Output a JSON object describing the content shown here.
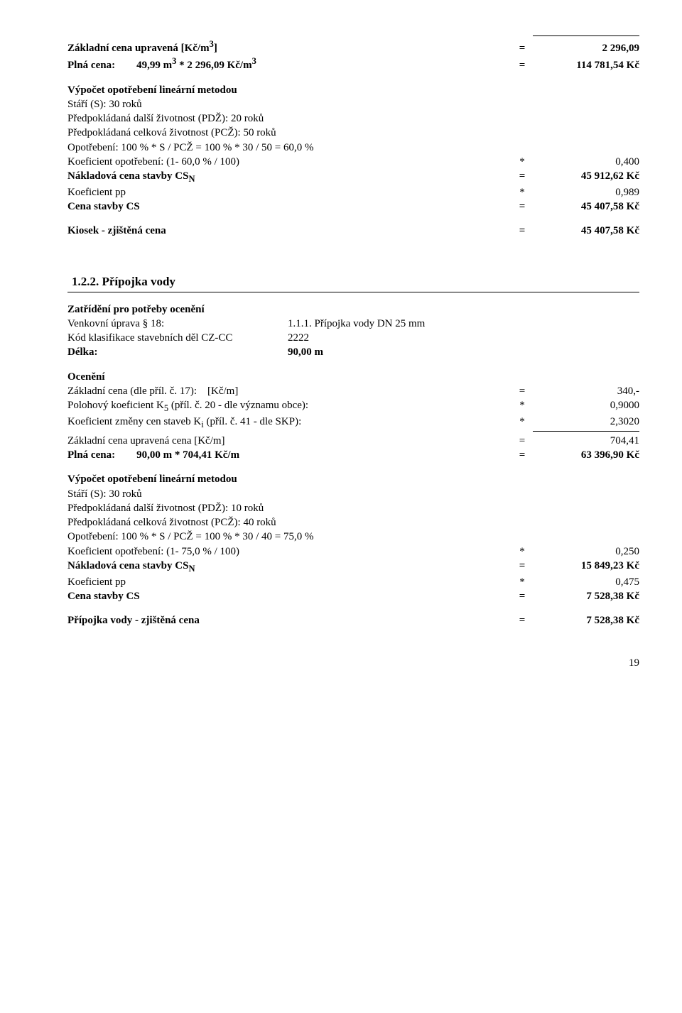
{
  "block1": {
    "top_line": true,
    "rows": [
      {
        "left": "Základní cena upravená [Kč/m<sup>3</sup>]",
        "op": "=",
        "val": "2 296,09",
        "bold": true
      },
      {
        "left": "Plná cena:&nbsp;&nbsp;&nbsp;&nbsp;&nbsp;&nbsp;&nbsp;&nbsp;49,99 m<sup>3</sup> * 2 296,09 Kč/m<sup>3</sup>",
        "op": "=",
        "val": "114 781,54 Kč",
        "bold": true
      }
    ]
  },
  "calc1": {
    "heading": "Výpočet opotřebení lineární metodou",
    "lines": [
      "Stáří (S): 30 roků",
      "Předpokládaná další životnost (PDŽ): 20 roků",
      "Předpokládaná celková životnost (PCŽ): 50 roků",
      "Opotřebení: 100 % * S / PCŽ = 100 % * 30 / 50 = 60,0 %"
    ],
    "rows": [
      {
        "left": "Koeficient opotřebení: (1- 60,0 % / 100)",
        "op": "*",
        "val": "0,400"
      },
      {
        "left": "Nákladová cena stavby CS<sub>N</sub>",
        "op": "=",
        "val": "45 912,62 Kč",
        "bold": true
      },
      {
        "left": "Koeficient pp",
        "op": "*",
        "val": "0,989"
      },
      {
        "left": "Cena stavby CS",
        "op": "=",
        "val": "45 407,58 Kč",
        "bold": true
      }
    ]
  },
  "result1": {
    "left": "Kiosek - zjištěná cena",
    "op": "=",
    "val": "45 407,58 Kč",
    "bold": true
  },
  "section2": {
    "number": "1.2.2. Přípojka vody",
    "zatr_heading": "Zatřídění pro potřeby ocenění",
    "pairs": [
      {
        "l": "Venkovní úprava § 18:",
        "r": "1.1.1. Přípojka vody DN 25 mm"
      },
      {
        "l": "Kód klasifikace stavebních děl CZ-CC",
        "r": "2222"
      }
    ],
    "delka": {
      "l": "Délka:",
      "r": "90,00 m"
    },
    "oceneni_heading": "Ocenění",
    "rows": [
      {
        "left": "Základní cena (dle příl. č. 17):&nbsp;&nbsp;&nbsp;&nbsp;[Kč/m]",
        "op": "=",
        "val": "340,-"
      },
      {
        "left": "Polohový koeficient K<sub>5</sub> (příl. č. 20 - dle významu obce):",
        "op": "*",
        "val": "0,9000"
      },
      {
        "left": "Koeficient změny cen staveb K<sub>i</sub> (příl. č. 41 - dle SKP):",
        "op": "*",
        "val": "2,3020"
      },
      {
        "left": "Základní cena upravená cena [Kč/m]",
        "op": "=",
        "val": "704,41",
        "topline": true
      }
    ],
    "plna": {
      "left": "Plná cena:&nbsp;&nbsp;&nbsp;&nbsp;&nbsp;&nbsp;&nbsp;&nbsp;90,00 m * 704,41 Kč/m",
      "op": "=",
      "val": "63 396,90 Kč",
      "bold": true
    }
  },
  "calc2": {
    "heading": "Výpočet opotřebení lineární metodou",
    "lines": [
      "Stáří (S): 30 roků",
      "Předpokládaná další životnost (PDŽ): 10 roků",
      "Předpokládaná celková životnost (PCŽ): 40 roků",
      "Opotřebení: 100 % * S / PCŽ = 100 % * 30 / 40 = 75,0 %"
    ],
    "rows": [
      {
        "left": "Koeficient opotřebení: (1- 75,0 % / 100)",
        "op": "*",
        "val": "0,250"
      },
      {
        "left": "Nákladová cena stavby CS<sub>N</sub>",
        "op": "=",
        "val": "15 849,23 Kč",
        "bold": true
      },
      {
        "left": "Koeficient pp",
        "op": "*",
        "val": "0,475"
      },
      {
        "left": "Cena stavby CS",
        "op": "=",
        "val": "7 528,38 Kč",
        "bold": true
      }
    ]
  },
  "result2": {
    "left": "Přípojka vody - zjištěná cena",
    "op": "=",
    "val": "7 528,38 Kč",
    "bold": true
  },
  "page": "19"
}
